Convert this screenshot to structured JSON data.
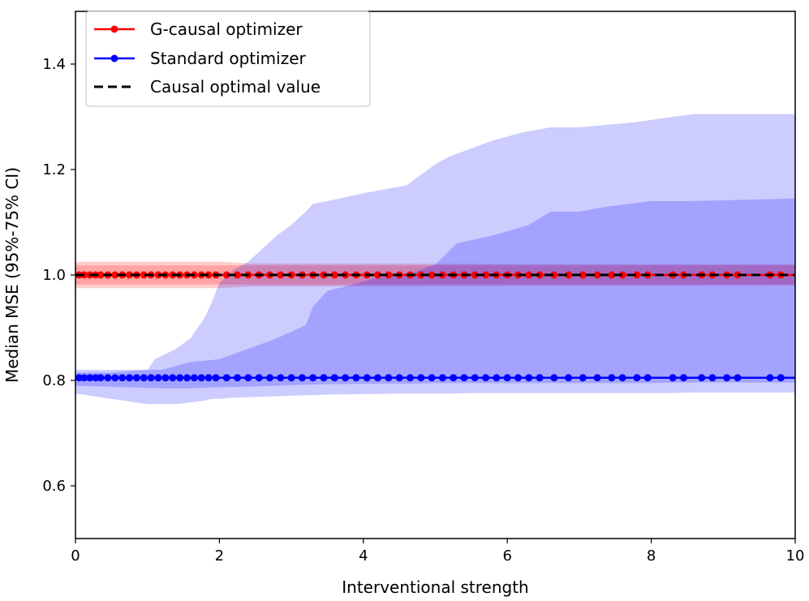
{
  "chart_data": {
    "type": "line",
    "xlabel": "Interventional strength",
    "ylabel": "Median MSE (95%-75% CI)",
    "xlim": [
      0,
      10
    ],
    "ylim": [
      0.5,
      1.5
    ],
    "xticks": [
      0,
      2,
      4,
      6,
      8,
      10
    ],
    "xtick_labels": [
      "0",
      "2",
      "4",
      "6",
      "8",
      "10"
    ],
    "yticks": [
      0.6,
      0.8,
      1.0,
      1.2,
      1.4
    ],
    "ytick_labels": [
      "0.6",
      "0.8",
      "1.0",
      "1.2",
      "1.4"
    ],
    "grid": false,
    "legend_position": "top-left",
    "series": [
      {
        "name": "G-causal optimizer",
        "color": "#ff0000",
        "marker": "circle",
        "median": 1.0,
        "marker_x": [
          0.05,
          0.12,
          0.2,
          0.28,
          0.35,
          0.45,
          0.55,
          0.65,
          0.75,
          0.85,
          0.95,
          1.05,
          1.15,
          1.25,
          1.35,
          1.45,
          1.55,
          1.65,
          1.75,
          1.85,
          1.95,
          2.1,
          2.25,
          2.4,
          2.55,
          2.7,
          2.85,
          3.0,
          3.15,
          3.3,
          3.45,
          3.6,
          3.75,
          3.9,
          4.05,
          4.2,
          4.35,
          4.5,
          4.65,
          4.8,
          4.95,
          5.1,
          5.25,
          5.4,
          5.55,
          5.7,
          5.85,
          6.0,
          6.15,
          6.3,
          6.45,
          6.65,
          6.85,
          7.05,
          7.25,
          7.45,
          7.6,
          7.8,
          7.95,
          8.3,
          8.45,
          8.7,
          8.85,
          9.05,
          9.2,
          9.65,
          9.8
        ],
        "ci75": [
          [
            0,
            0.982,
            1.018
          ],
          [
            10,
            0.982,
            1.018
          ]
        ],
        "ci95": [
          [
            0,
            0.975,
            1.025
          ],
          [
            2,
            0.975,
            1.025
          ],
          [
            2.4,
            0.978,
            1.022
          ],
          [
            10,
            0.98,
            1.02
          ]
        ]
      },
      {
        "name": "Standard optimizer",
        "color": "#0000ff",
        "marker": "circle",
        "median": 0.805,
        "marker_x": [
          0.05,
          0.12,
          0.2,
          0.28,
          0.35,
          0.45,
          0.55,
          0.65,
          0.75,
          0.85,
          0.95,
          1.05,
          1.15,
          1.25,
          1.35,
          1.45,
          1.55,
          1.65,
          1.75,
          1.85,
          1.95,
          2.1,
          2.25,
          2.4,
          2.55,
          2.7,
          2.85,
          3.0,
          3.15,
          3.3,
          3.45,
          3.6,
          3.75,
          3.9,
          4.05,
          4.2,
          4.35,
          4.5,
          4.65,
          4.8,
          4.95,
          5.1,
          5.25,
          5.4,
          5.55,
          5.7,
          5.85,
          6.0,
          6.15,
          6.3,
          6.45,
          6.65,
          6.85,
          7.05,
          7.25,
          7.45,
          7.6,
          7.8,
          7.95,
          8.3,
          8.45,
          8.7,
          8.85,
          9.05,
          9.2,
          9.65,
          9.8
        ],
        "ci75": [
          [
            0,
            0.79,
            0.82
          ],
          [
            1.2,
            0.785,
            0.82
          ],
          [
            1.6,
            0.785,
            0.835
          ],
          [
            2.0,
            0.787,
            0.84
          ],
          [
            2.4,
            0.788,
            0.86
          ],
          [
            2.8,
            0.79,
            0.88
          ],
          [
            3.2,
            0.792,
            0.905
          ],
          [
            3.3,
            0.792,
            0.94
          ],
          [
            3.5,
            0.793,
            0.97
          ],
          [
            3.8,
            0.793,
            0.98
          ],
          [
            4.2,
            0.794,
            0.995
          ],
          [
            4.7,
            0.794,
            1.005
          ],
          [
            5.0,
            0.795,
            1.02
          ],
          [
            5.3,
            0.795,
            1.06
          ],
          [
            5.8,
            0.795,
            1.075
          ],
          [
            6.3,
            0.795,
            1.095
          ],
          [
            6.6,
            0.795,
            1.12
          ],
          [
            7.0,
            0.795,
            1.12
          ],
          [
            7.4,
            0.795,
            1.13
          ],
          [
            8.0,
            0.795,
            1.14
          ],
          [
            8.5,
            0.796,
            1.14
          ],
          [
            10,
            0.796,
            1.145
          ]
        ],
        "ci95": [
          [
            0,
            0.775,
            0.815
          ],
          [
            0.5,
            0.765,
            0.815
          ],
          [
            1.0,
            0.755,
            0.82
          ],
          [
            1.1,
            0.755,
            0.84
          ],
          [
            1.4,
            0.755,
            0.86
          ],
          [
            1.6,
            0.758,
            0.88
          ],
          [
            1.7,
            0.76,
            0.9
          ],
          [
            1.8,
            0.762,
            0.92
          ],
          [
            1.9,
            0.765,
            0.95
          ],
          [
            2.0,
            0.765,
            0.985
          ],
          [
            2.2,
            0.767,
            1.01
          ],
          [
            2.4,
            0.768,
            1.025
          ],
          [
            2.6,
            0.769,
            1.05
          ],
          [
            2.8,
            0.77,
            1.075
          ],
          [
            3.0,
            0.771,
            1.095
          ],
          [
            3.2,
            0.772,
            1.12
          ],
          [
            3.3,
            0.772,
            1.135
          ],
          [
            3.5,
            0.773,
            1.14
          ],
          [
            4.0,
            0.774,
            1.155
          ],
          [
            4.6,
            0.775,
            1.17
          ],
          [
            5.0,
            0.775,
            1.21
          ],
          [
            5.2,
            0.775,
            1.225
          ],
          [
            5.5,
            0.776,
            1.24
          ],
          [
            5.8,
            0.776,
            1.255
          ],
          [
            6.2,
            0.776,
            1.27
          ],
          [
            6.6,
            0.776,
            1.28
          ],
          [
            7.0,
            0.776,
            1.28
          ],
          [
            7.8,
            0.776,
            1.29
          ],
          [
            8.3,
            0.776,
            1.3
          ],
          [
            8.6,
            0.777,
            1.305
          ],
          [
            10,
            0.777,
            1.305
          ]
        ]
      },
      {
        "name": "Causal optimal value",
        "color": "#000000",
        "style": "dashed",
        "value": 1.0
      }
    ]
  }
}
